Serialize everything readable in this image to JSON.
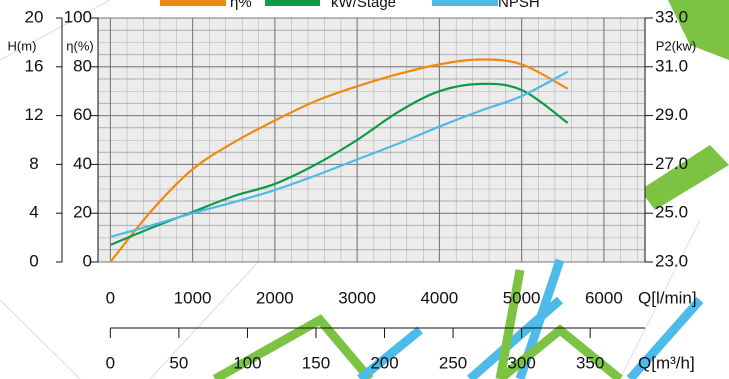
{
  "chart_data": {
    "type": "line",
    "x": [
      0,
      500,
      1000,
      1500,
      2000,
      2500,
      3000,
      3500,
      4000,
      4500,
      5000,
      5560
    ],
    "xlim": [
      -150,
      6500
    ],
    "xticks": [
      0,
      1000,
      2000,
      3000,
      4000,
      5000,
      6000
    ],
    "xlabel": "Q[l/min]",
    "x2lim": [
      -9,
      390
    ],
    "x2ticks": [
      0,
      50,
      100,
      150,
      200,
      250,
      300,
      350
    ],
    "x2label": "Q[m³/h]",
    "ylim": [
      0,
      100
    ],
    "yticks": [
      0,
      20,
      40,
      60,
      80,
      100
    ],
    "ylabel": "η(%)",
    "h_axis": {
      "label": "H(m)",
      "lim": [
        0,
        20
      ],
      "ticks": [
        0,
        4,
        8,
        12,
        16,
        20
      ]
    },
    "y2lim": [
      23,
      33
    ],
    "y2label": "P2(kw)",
    "y2ticks": [
      {
        "value": 23,
        "label": "23.0"
      },
      {
        "value": 25,
        "label": "25.0"
      },
      {
        "value": 27,
        "label": "27.0"
      },
      {
        "value": 29,
        "label": "29.0"
      },
      {
        "value": 31,
        "label": "31.0"
      },
      {
        "value": 33,
        "label": "33.0"
      }
    ],
    "grid": true,
    "series": [
      {
        "name": "η%",
        "color": "#f0890f",
        "axis": "y",
        "values": [
          0,
          21,
          38,
          49,
          58,
          66,
          72,
          77,
          81,
          83,
          81,
          71
        ]
      },
      {
        "name": "kW/Stage",
        "color": "#0e9a48",
        "axis": "y2",
        "values": [
          23.7,
          24.4,
          25.05,
          25.7,
          26.2,
          27.0,
          28.0,
          29.15,
          30.0,
          30.3,
          30.05,
          28.7
        ]
      },
      {
        "name": "NPSH",
        "color": "#4dbbe9",
        "axis": "h",
        "values": [
          2.05,
          3.0,
          4.0,
          4.9,
          5.9,
          7.1,
          8.4,
          9.7,
          11.1,
          12.4,
          13.6,
          15.6
        ]
      }
    ]
  }
}
